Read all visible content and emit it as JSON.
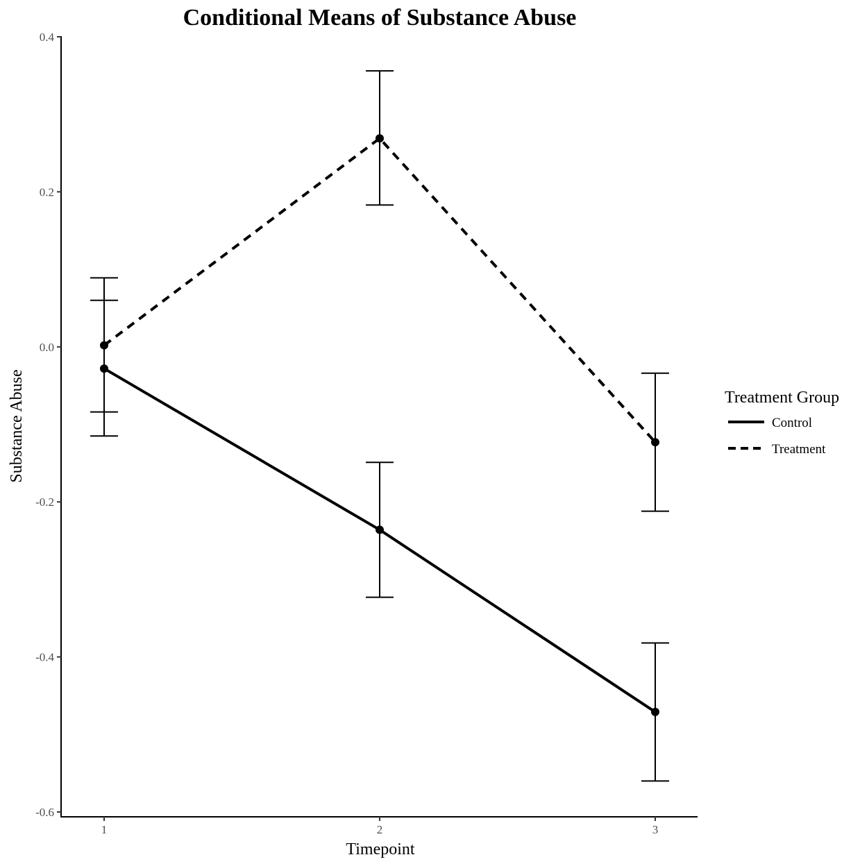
{
  "chart_data": {
    "type": "line",
    "title": "Conditional Means of Substance Abuse",
    "xlabel": "Timepoint",
    "ylabel": "Substance Abuse",
    "x": [
      1,
      2,
      3
    ],
    "x_tick_labels": [
      "1",
      "2",
      "3"
    ],
    "ylim": [
      -0.6,
      0.4
    ],
    "y_ticks": [
      0.4,
      0.2,
      0.0,
      -0.2,
      -0.4,
      -0.6
    ],
    "y_tick_labels": [
      "0.4",
      "0.2",
      "0.0",
      "-0.2",
      "-0.4",
      "-0.6"
    ],
    "grid": false,
    "legend": {
      "title": "Treatment Group",
      "position": "right"
    },
    "series": [
      {
        "name": "Control",
        "line_style": "solid",
        "values": [
          -0.028,
          -0.236,
          -0.471
        ],
        "error_lower": [
          -0.115,
          -0.323,
          -0.56
        ],
        "error_upper": [
          0.06,
          -0.149,
          -0.382
        ]
      },
      {
        "name": "Treatment",
        "line_style": "dashed",
        "values": [
          0.002,
          0.269,
          -0.123
        ],
        "error_lower": [
          -0.084,
          0.183,
          -0.212
        ],
        "error_upper": [
          0.089,
          0.356,
          -0.034
        ]
      }
    ],
    "colors": {
      "line": "#000000",
      "tick_label": "#4d4d4d"
    }
  }
}
